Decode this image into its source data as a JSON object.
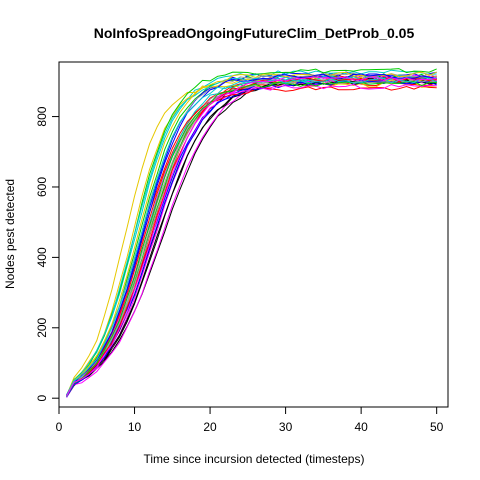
{
  "chart_data": {
    "type": "line",
    "title": "NoInfoSpreadOngoingFutureClim_DetProb_0.05",
    "xlabel": "Time since incursion detected (timesteps)",
    "ylabel": "Nodes pest detected",
    "xlim": [
      0,
      51.5
    ],
    "ylim": [
      -25,
      955
    ],
    "x_ticks": [
      0,
      10,
      20,
      30,
      40,
      50
    ],
    "y_ticks": [
      0,
      200,
      400,
      600,
      800
    ],
    "grid": false,
    "legend": "none",
    "x_start": 1,
    "x_end": 50,
    "series": [
      {
        "color": "#000000",
        "start": 5,
        "plateau": 905,
        "half_time": 12.5,
        "rate": 0.3
      },
      {
        "color": "#000000",
        "start": 8,
        "plateau": 912,
        "half_time": 13.8,
        "rate": 0.27
      },
      {
        "color": "#000000",
        "start": 3,
        "plateau": 900,
        "half_time": 13.0,
        "rate": 0.29
      },
      {
        "color": "#ff0000",
        "start": 6,
        "plateau": 895,
        "half_time": 11.2,
        "rate": 0.33
      },
      {
        "color": "#ff0000",
        "start": 7,
        "plateau": 910,
        "half_time": 12.0,
        "rate": 0.31
      },
      {
        "color": "#00cd00",
        "start": 4,
        "plateau": 915,
        "half_time": 10.6,
        "rate": 0.35
      },
      {
        "color": "#00cd00",
        "start": 9,
        "plateau": 902,
        "half_time": 11.8,
        "rate": 0.32
      },
      {
        "color": "#0000ff",
        "start": 6,
        "plateau": 898,
        "half_time": 12.2,
        "rate": 0.3
      },
      {
        "color": "#0000ff",
        "start": 5,
        "plateau": 920,
        "half_time": 11.0,
        "rate": 0.34
      },
      {
        "color": "#00cdcd",
        "start": 10,
        "plateau": 925,
        "half_time": 10.2,
        "rate": 0.36
      },
      {
        "color": "#00cdcd",
        "start": 7,
        "plateau": 908,
        "half_time": 11.5,
        "rate": 0.33
      },
      {
        "color": "#ff00ff",
        "start": 2,
        "plateau": 900,
        "half_time": 13.5,
        "rate": 0.28
      },
      {
        "color": "#ff00ff",
        "start": 6,
        "plateau": 912,
        "half_time": 12.7,
        "rate": 0.3
      },
      {
        "color": "#e6c800",
        "start": 8,
        "plateau": 890,
        "half_time": 8.6,
        "rate": 0.42
      },
      {
        "color": "#e6c800",
        "start": 5,
        "plateau": 905,
        "half_time": 9.6,
        "rate": 0.38
      },
      {
        "color": "#9e9e9e",
        "start": 4,
        "plateau": 903,
        "half_time": 11.9,
        "rate": 0.31
      },
      {
        "color": "#9e9e9e",
        "start": 7,
        "plateau": 918,
        "half_time": 10.8,
        "rate": 0.34
      },
      {
        "color": "#000000",
        "start": 6,
        "plateau": 897,
        "half_time": 12.9,
        "rate": 0.29
      },
      {
        "color": "#ff0000",
        "start": 5,
        "plateau": 880,
        "half_time": 10.9,
        "rate": 0.34
      },
      {
        "color": "#00cd00",
        "start": 8,
        "plateau": 930,
        "half_time": 10.0,
        "rate": 0.37
      },
      {
        "color": "#0000ff",
        "start": 3,
        "plateau": 895,
        "half_time": 12.4,
        "rate": 0.3
      },
      {
        "color": "#00cdcd",
        "start": 9,
        "plateau": 910,
        "half_time": 9.9,
        "rate": 0.37
      },
      {
        "color": "#ff00ff",
        "start": 4,
        "plateau": 885,
        "half_time": 11.3,
        "rate": 0.33
      },
      {
        "color": "#e6c800",
        "start": 6,
        "plateau": 920,
        "half_time": 10.4,
        "rate": 0.36
      },
      {
        "color": "#9e9e9e",
        "start": 5,
        "plateau": 900,
        "half_time": 11.6,
        "rate": 0.32
      },
      {
        "color": "#ff0000",
        "start": 7,
        "plateau": 905,
        "half_time": 12.1,
        "rate": 0.31
      },
      {
        "color": "#00cd00",
        "start": 6,
        "plateau": 893,
        "half_time": 11.4,
        "rate": 0.33
      },
      {
        "color": "#0000ff",
        "start": 8,
        "plateau": 915,
        "half_time": 11.1,
        "rate": 0.34
      },
      {
        "color": "#00cdcd",
        "start": 5,
        "plateau": 902,
        "half_time": 10.7,
        "rate": 0.35
      },
      {
        "color": "#ff00ff",
        "start": 7,
        "plateau": 908,
        "half_time": 12.3,
        "rate": 0.31
      }
    ]
  }
}
